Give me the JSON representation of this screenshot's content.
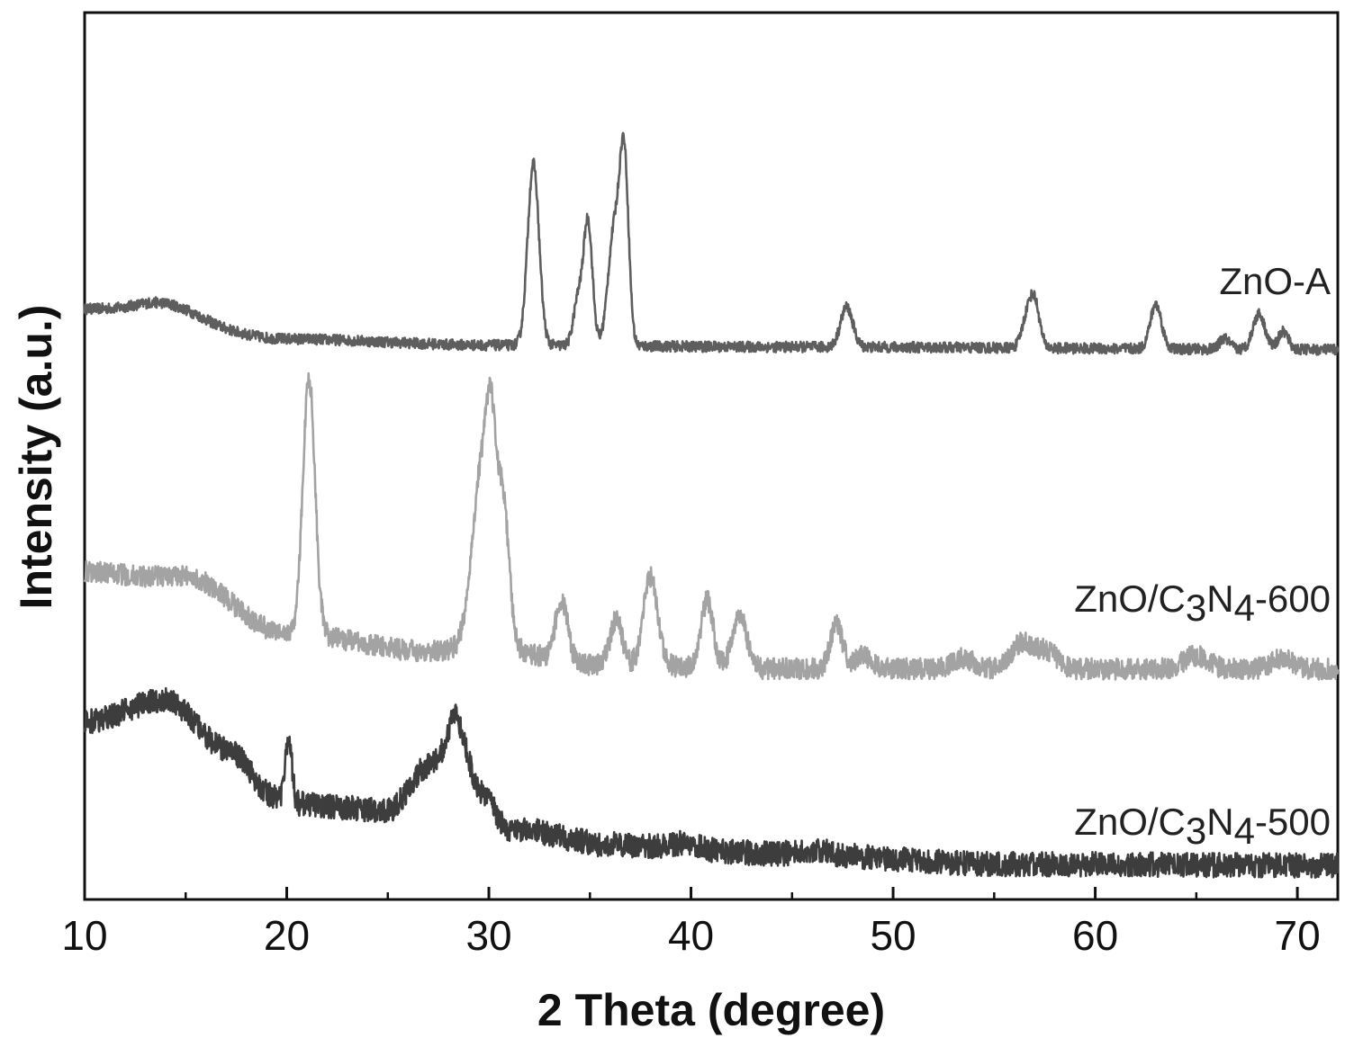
{
  "chart_data": {
    "type": "line",
    "title": "",
    "xlabel": "2 Theta (degree)",
    "ylabel": "Intensity (a.u.)",
    "xlim": [
      10,
      72
    ],
    "ylim": [
      0,
      1
    ],
    "x_ticks": [
      10,
      20,
      30,
      40,
      50,
      60,
      70
    ],
    "x_tick_labels": [
      "10",
      "20",
      "30",
      "40",
      "50",
      "60",
      "70"
    ],
    "y_ticks_shown": false,
    "grid": false,
    "legend": "none (labels placed next to curves, right side)",
    "series": [
      {
        "name": "ZnO-A",
        "label_parts": {
          "main": "ZnO-A",
          "sub1": "",
          "mid": "",
          "sub2": "",
          "tail": ""
        },
        "color": "#5e5e5e",
        "baseline": [
          [
            10,
            0.665
          ],
          [
            15,
            0.645
          ],
          [
            20,
            0.632
          ],
          [
            30,
            0.625
          ],
          [
            45,
            0.623
          ],
          [
            72,
            0.62
          ]
        ],
        "peaks": [
          {
            "x": 14.0,
            "h": 0.025,
            "w": 1.5
          },
          {
            "x": 32.2,
            "h": 0.205,
            "w": 0.28
          },
          {
            "x": 34.4,
            "h": 0.05,
            "w": 0.22
          },
          {
            "x": 34.9,
            "h": 0.14,
            "w": 0.22
          },
          {
            "x": 36.2,
            "h": 0.13,
            "w": 0.3
          },
          {
            "x": 36.7,
            "h": 0.2,
            "w": 0.22
          },
          {
            "x": 47.7,
            "h": 0.045,
            "w": 0.3
          },
          {
            "x": 56.6,
            "h": 0.03,
            "w": 0.25
          },
          {
            "x": 57.0,
            "h": 0.05,
            "w": 0.25
          },
          {
            "x": 63.0,
            "h": 0.05,
            "w": 0.28
          },
          {
            "x": 66.4,
            "h": 0.012,
            "w": 0.25
          },
          {
            "x": 68.1,
            "h": 0.04,
            "w": 0.3
          },
          {
            "x": 69.3,
            "h": 0.02,
            "w": 0.25
          }
        ],
        "noise": 0.006
      },
      {
        "name": "ZnO/C3N4-600",
        "label_parts": {
          "main": "ZnO/C",
          "sub1": "3",
          "mid": "N",
          "sub2": "4",
          "tail": "-600"
        },
        "color": "#a3a3a3",
        "baseline": [
          [
            10,
            0.37
          ],
          [
            15,
            0.355
          ],
          [
            20,
            0.3
          ],
          [
            27,
            0.28
          ],
          [
            30,
            0.285
          ],
          [
            35,
            0.265
          ],
          [
            45,
            0.26
          ],
          [
            55,
            0.26
          ],
          [
            72,
            0.26
          ]
        ],
        "peaks": [
          {
            "x": 15.0,
            "h": 0.01,
            "w": 1.5
          },
          {
            "x": 21.1,
            "h": 0.29,
            "w": 0.3
          },
          {
            "x": 29.7,
            "h": 0.21,
            "w": 0.5
          },
          {
            "x": 30.1,
            "h": 0.12,
            "w": 0.22
          },
          {
            "x": 30.7,
            "h": 0.15,
            "w": 0.3
          },
          {
            "x": 33.6,
            "h": 0.07,
            "w": 0.3
          },
          {
            "x": 36.3,
            "h": 0.05,
            "w": 0.3
          },
          {
            "x": 38.0,
            "h": 0.1,
            "w": 0.35
          },
          {
            "x": 40.8,
            "h": 0.075,
            "w": 0.3
          },
          {
            "x": 42.4,
            "h": 0.06,
            "w": 0.35
          },
          {
            "x": 47.2,
            "h": 0.05,
            "w": 0.3
          },
          {
            "x": 48.5,
            "h": 0.015,
            "w": 0.4
          },
          {
            "x": 53.5,
            "h": 0.012,
            "w": 0.5
          },
          {
            "x": 56.4,
            "h": 0.03,
            "w": 0.5
          },
          {
            "x": 57.6,
            "h": 0.02,
            "w": 0.5
          },
          {
            "x": 65.0,
            "h": 0.015,
            "w": 0.6
          },
          {
            "x": 69.2,
            "h": 0.012,
            "w": 0.5
          }
        ],
        "noise": 0.012
      },
      {
        "name": "ZnO/C3N4-500",
        "label_parts": {
          "main": "ZnO/C",
          "sub1": "3",
          "mid": "N",
          "sub2": "4",
          "tail": "-500"
        },
        "color": "#3d3d3d",
        "baseline": [
          [
            10,
            0.2
          ],
          [
            14,
            0.225
          ],
          [
            17,
            0.17
          ],
          [
            19.5,
            0.115
          ],
          [
            21,
            0.107
          ],
          [
            25,
            0.1
          ],
          [
            27,
            0.15
          ],
          [
            28.5,
            0.19
          ],
          [
            29.6,
            0.12
          ],
          [
            31,
            0.08
          ],
          [
            36,
            0.062
          ],
          [
            40,
            0.055
          ],
          [
            46,
            0.05
          ],
          [
            55,
            0.04
          ],
          [
            72,
            0.038
          ]
        ],
        "peaks": [
          {
            "x": 20.1,
            "h": 0.075,
            "w": 0.15
          },
          {
            "x": 28.3,
            "h": 0.02,
            "w": 0.2
          },
          {
            "x": 39.5,
            "h": 0.008,
            "w": 0.8
          },
          {
            "x": 46.0,
            "h": 0.006,
            "w": 0.8
          }
        ],
        "noise": 0.014
      }
    ]
  }
}
